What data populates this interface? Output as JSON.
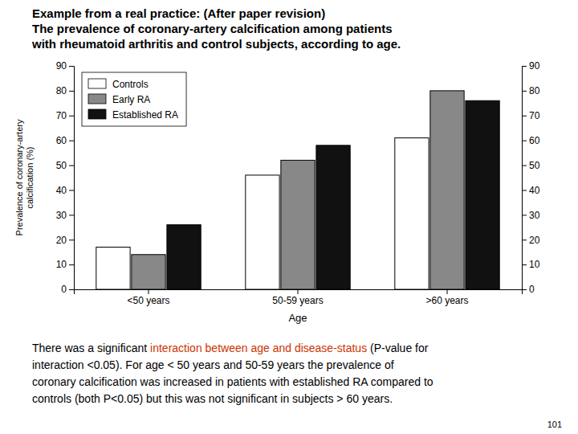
{
  "chart_data": {
    "type": "bar",
    "title": "Example from a real practice:  (After paper revision)\nThe prevalence of coronary-artery calcification among patients\nwith rheumatoid arthritis and control subjects, according to age.",
    "categories": [
      "<50 years",
      "50-59 years",
      ">60 years"
    ],
    "series": [
      {
        "name": "Controls",
        "color": "#ffffff",
        "values": [
          17,
          46,
          61
        ]
      },
      {
        "name": "Early RA",
        "color": "#888888",
        "values": [
          14,
          52,
          80
        ]
      },
      {
        "name": "Established RA",
        "color": "#111111",
        "values": [
          26,
          58,
          76
        ]
      }
    ],
    "x_label": "Age",
    "y_label": "Prevalence of coronary-artery\ncalcification (%)",
    "ylim": [
      0,
      90
    ],
    "yticks": [
      0,
      10,
      20,
      30,
      40,
      50,
      60,
      70,
      80,
      90
    ],
    "y2lim": [
      0,
      90
    ],
    "y2ticks": [
      0,
      10,
      20,
      30,
      40,
      50,
      60,
      70,
      80,
      90
    ],
    "grid": false,
    "legend": "upper left",
    "annotations": [
      {
        "segments": [
          {
            "text": "There was a significant "
          },
          {
            "text": "interaction between age and disease-status",
            "color": "#cc3300"
          },
          {
            "text": " (P-value for"
          }
        ]
      },
      {
        "segments": [
          {
            "text": "interaction <0.05). For age < 50 years and 50-59 years the prevalence of"
          }
        ]
      },
      {
        "segments": [
          {
            "text": "coronary calcification was increased in patients with established RA compared to"
          }
        ]
      },
      {
        "segments": [
          {
            "text": "controls (both P<0.05) but this was not significant in subjects > 60 years."
          }
        ]
      }
    ],
    "page_number": "101"
  }
}
